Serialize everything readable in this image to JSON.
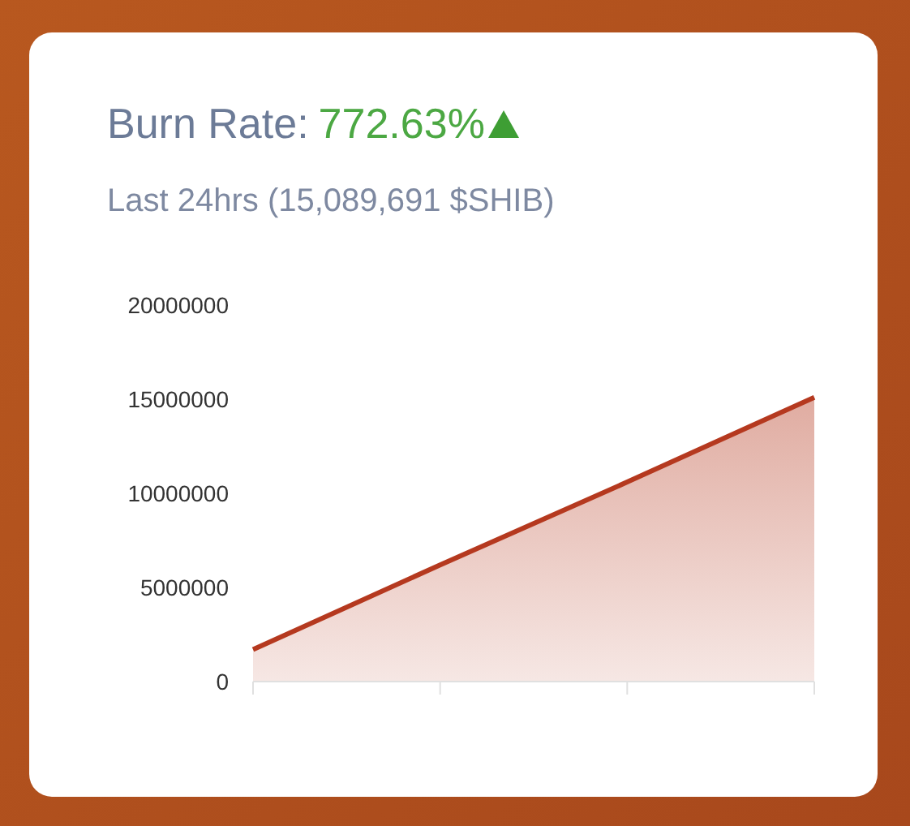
{
  "chart_data": {
    "type": "area",
    "title": "Burn Rate:",
    "subtitle": "Last 24hrs (15,089,691 $SHIB)",
    "annotations": [
      "772.63%"
    ],
    "categories": [
      null,
      null,
      null,
      null
    ],
    "series": [
      {
        "color": "#b5391f",
        "values": [
          1700000,
          6200000,
          10600000,
          15100000
        ]
      }
    ],
    "ylim": [
      0,
      20000000
    ],
    "yticks": [
      0,
      5000000,
      10000000,
      15000000,
      20000000
    ],
    "grid": false,
    "legend": false,
    "marker": "none",
    "line_style": "solid"
  }
}
